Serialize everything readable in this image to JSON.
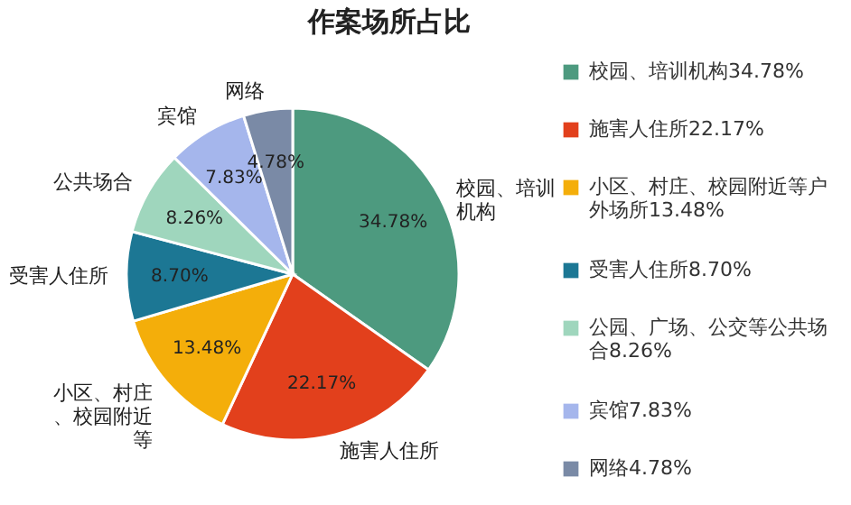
{
  "chart_data": {
    "type": "pie",
    "title": "作案场所占比",
    "categories": [
      "校园、培训机构34.78%",
      "施害人住所22.17%",
      "小区、村庄、校园附近等户外场所13.48%",
      "受害人住所8.70%",
      "公园、广场、公交等公共场合8.26%",
      "宾馆7.83%",
      "网络4.78%"
    ],
    "values": [
      34.78,
      22.17,
      13.48,
      8.7,
      8.26,
      7.83,
      4.78
    ],
    "colors": [
      "#4d9a7f",
      "#e2401c",
      "#f4ae0a",
      "#1c7794",
      "#9fd6bd",
      "#a5b6ec",
      "#7a8aa6"
    ],
    "value_labels": [
      "34.78%",
      "22.17%",
      "13.48%",
      "8.70%",
      "8.26%",
      "7.83%",
      "4.78%"
    ],
    "annotations": [
      "校园、培训机构",
      "施害人住所",
      "小区、村庄、校园附近等",
      "受害人住所",
      "公共场合",
      "宾馆",
      "网络"
    ],
    "legend": "right"
  }
}
